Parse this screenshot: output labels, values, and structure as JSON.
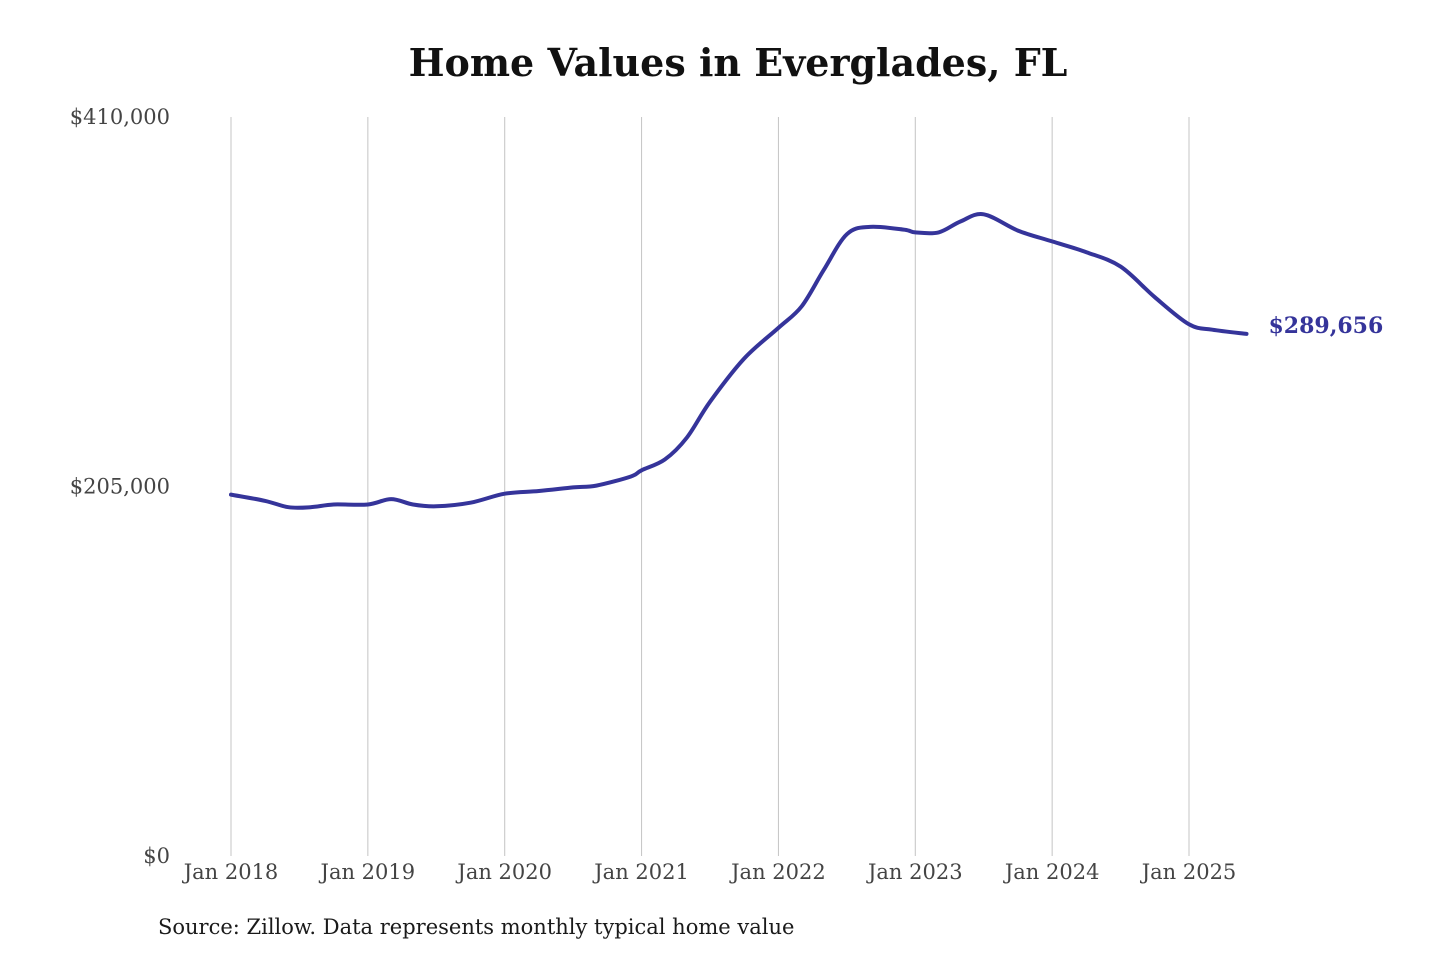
{
  "chart_data": {
    "type": "line",
    "title": "Home Values in Everglades, FL",
    "source": "Source: Zillow. Data represents monthly typical home value",
    "ylim": [
      0,
      410000
    ],
    "yticks": [
      {
        "value": 0,
        "label": "$0"
      },
      {
        "value": 205000,
        "label": "$205,000"
      },
      {
        "value": 410000,
        "label": "$410,000"
      }
    ],
    "xticks": [
      {
        "value": 2018.0,
        "label": "Jan 2018"
      },
      {
        "value": 2019.0,
        "label": "Jan 2019"
      },
      {
        "value": 2020.0,
        "label": "Jan 2020"
      },
      {
        "value": 2021.0,
        "label": "Jan 2021"
      },
      {
        "value": 2022.0,
        "label": "Jan 2022"
      },
      {
        "value": 2023.0,
        "label": "Jan 2023"
      },
      {
        "value": 2024.0,
        "label": "Jan 2024"
      },
      {
        "value": 2025.0,
        "label": "Jan 2025"
      }
    ],
    "xlim": [
      2018.0,
      2025.5
    ],
    "grid": "vertical",
    "line_color": "#35349a",
    "series": [
      {
        "end_label": "$289,656",
        "points": [
          [
            2018.0,
            200500
          ],
          [
            2018.25,
            197000
          ],
          [
            2018.42,
            193500
          ],
          [
            2018.58,
            193500
          ],
          [
            2018.75,
            195000
          ],
          [
            2019.0,
            195000
          ],
          [
            2019.17,
            198000
          ],
          [
            2019.33,
            195000
          ],
          [
            2019.5,
            194000
          ],
          [
            2019.75,
            196000
          ],
          [
            2020.0,
            201000
          ],
          [
            2020.25,
            202500
          ],
          [
            2020.5,
            204500
          ],
          [
            2020.67,
            205500
          ],
          [
            2020.92,
            210500
          ],
          [
            2021.0,
            214000
          ],
          [
            2021.17,
            220000
          ],
          [
            2021.33,
            232000
          ],
          [
            2021.5,
            252000
          ],
          [
            2021.75,
            276000
          ],
          [
            2022.0,
            293000
          ],
          [
            2022.17,
            305000
          ],
          [
            2022.33,
            325000
          ],
          [
            2022.5,
            345000
          ],
          [
            2022.67,
            349000
          ],
          [
            2022.92,
            347500
          ],
          [
            2023.0,
            346000
          ],
          [
            2023.17,
            346000
          ],
          [
            2023.33,
            352000
          ],
          [
            2023.5,
            356000
          ],
          [
            2023.75,
            347000
          ],
          [
            2024.0,
            341000
          ],
          [
            2024.25,
            335000
          ],
          [
            2024.5,
            327000
          ],
          [
            2024.75,
            310000
          ],
          [
            2025.0,
            295000
          ],
          [
            2025.17,
            292000
          ],
          [
            2025.42,
            289656
          ]
        ]
      }
    ]
  }
}
